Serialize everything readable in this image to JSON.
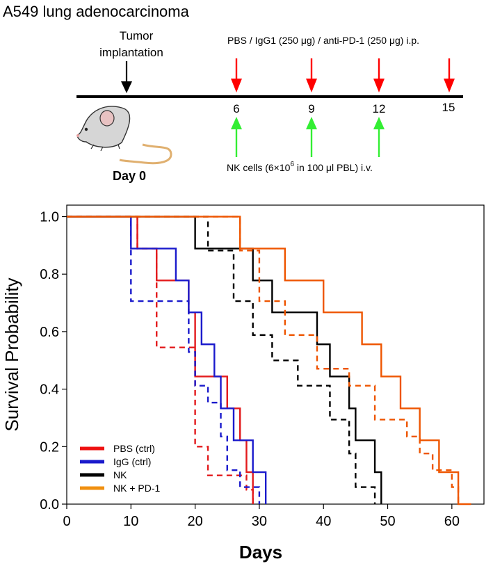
{
  "schema": {
    "title": "A549 lung adenocarcinoma",
    "implant_label_1": "Tumor",
    "implant_label_2": "implantation",
    "day0_label": "Day 0",
    "treatment_label": "PBS / IgG1 (250 μg) / anti-PD-1 (250 μg) i.p.",
    "nk_label_pre": "NK cells (6×10",
    "nk_label_sup": "6",
    "nk_label_post": " in 100 μl PBL) i.v.",
    "treatment_days": [
      "6",
      "9",
      "12",
      "15"
    ],
    "nk_days": [
      "6",
      "9",
      "12"
    ],
    "colors": {
      "treatment_arrow": "#ff0000",
      "nk_arrow": "#33ee33",
      "implant_arrow": "#000000"
    }
  },
  "chart_data": {
    "type": "line",
    "subtype": "kaplan-meier step survival curves",
    "xlabel": "Days",
    "ylabel": "Survival Probability",
    "xlim": [
      0,
      65
    ],
    "ylim": [
      0,
      1.04
    ],
    "xticks": [
      "0",
      "10",
      "20",
      "30",
      "40",
      "50",
      "60"
    ],
    "yticks": [
      "0.0",
      "0.2",
      "0.4",
      "0.6",
      "0.8",
      "1.0"
    ],
    "grid": false,
    "legend_position": "bottom-left",
    "legend": [
      {
        "name": "PBS (ctrl)",
        "color": "#ee1111"
      },
      {
        "name": "IgG (ctrl)",
        "color": "#1a1acc"
      },
      {
        "name": "NK",
        "color": "#000000"
      },
      {
        "name": "NK + PD-1",
        "color": "#f09010"
      }
    ],
    "series": [
      {
        "name": "PBS (ctrl)",
        "color": "#e31a1c",
        "dash": false,
        "x": [
          0,
          11,
          14,
          19,
          20,
          23,
          25,
          27,
          28,
          29
        ],
        "y": [
          1.0,
          0.889,
          0.778,
          0.667,
          0.444,
          0.444,
          0.333,
          0.222,
          0.111,
          0.0
        ]
      },
      {
        "name": "",
        "color": "#e31a1c",
        "dash": true,
        "x": [
          0,
          11,
          14,
          19,
          20,
          22,
          26,
          28,
          29
        ],
        "y": [
          1.0,
          0.889,
          0.545,
          0.545,
          0.2,
          0.1,
          0.1,
          0.05,
          0.0
        ]
      },
      {
        "name": "IgG (ctrl)",
        "color": "#1a1acc",
        "dash": false,
        "x": [
          0,
          10,
          17,
          19,
          21,
          23,
          24,
          26,
          29,
          31
        ],
        "y": [
          1.0,
          0.889,
          0.778,
          0.667,
          0.556,
          0.444,
          0.333,
          0.222,
          0.111,
          0.0
        ]
      },
      {
        "name": "",
        "color": "#1a1acc",
        "dash": true,
        "x": [
          0,
          10,
          16,
          19,
          20,
          22,
          24,
          25,
          27,
          30
        ],
        "y": [
          1.0,
          0.706,
          0.706,
          0.529,
          0.412,
          0.353,
          0.235,
          0.118,
          0.059,
          0.0
        ]
      },
      {
        "name": "NK",
        "color": "#000000",
        "dash": false,
        "x": [
          0,
          20,
          29,
          32,
          39,
          41,
          44,
          45,
          48,
          49
        ],
        "y": [
          1.0,
          0.889,
          0.778,
          0.667,
          0.556,
          0.444,
          0.333,
          0.222,
          0.111,
          0.0
        ]
      },
      {
        "name": "",
        "color": "#000000",
        "dash": true,
        "x": [
          0,
          22,
          26,
          29,
          32,
          36,
          41,
          44,
          45,
          48
        ],
        "y": [
          1.0,
          0.882,
          0.706,
          0.588,
          0.5,
          0.412,
          0.294,
          0.176,
          0.059,
          0.0
        ]
      },
      {
        "name": "NK + PD-1",
        "color": "#ee5500",
        "dash": false,
        "x": [
          0,
          27,
          34,
          40,
          46,
          49,
          52,
          55,
          58,
          61,
          63
        ],
        "y": [
          1.0,
          0.889,
          0.778,
          0.667,
          0.556,
          0.444,
          0.333,
          0.222,
          0.111,
          0.0,
          0.0
        ]
      },
      {
        "name": "",
        "color": "#ee5500",
        "dash": true,
        "x": [
          0,
          27,
          30,
          34,
          39,
          44,
          48,
          53,
          55,
          57,
          60,
          61
        ],
        "y": [
          1.0,
          0.882,
          0.706,
          0.588,
          0.471,
          0.412,
          0.294,
          0.235,
          0.176,
          0.118,
          0.059,
          0.0
        ]
      }
    ]
  }
}
